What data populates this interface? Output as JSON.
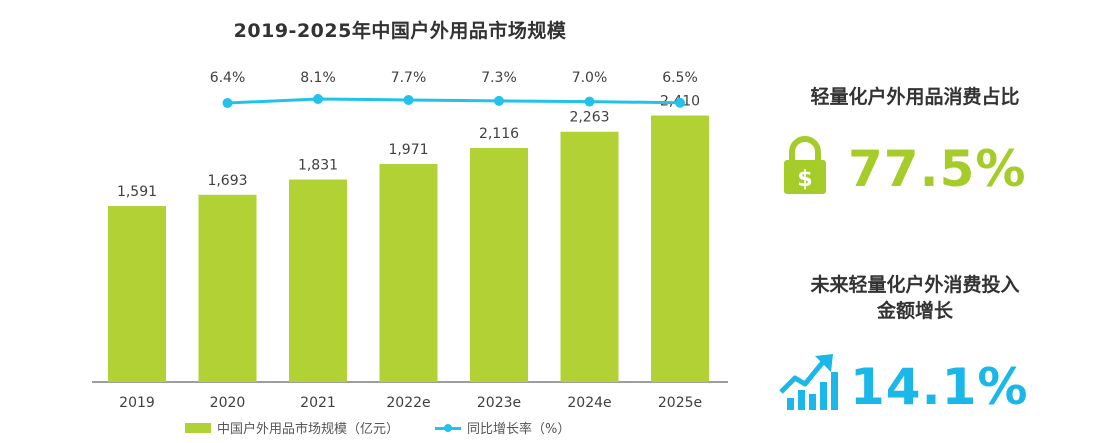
{
  "chart_data": {
    "type": "bar",
    "title": "2019-2025年中国户外用品市场规模",
    "categories": [
      "2019",
      "2020",
      "2021",
      "2022e",
      "2023e",
      "2024e",
      "2025e"
    ],
    "series": [
      {
        "name": "中国户外用品市场规模（亿元）",
        "type": "bar",
        "values": [
          1591,
          1693,
          1831,
          1971,
          2116,
          2263,
          2410
        ],
        "labels": [
          "1,591",
          "1,693",
          "1,831",
          "1,971",
          "2,116",
          "2,263",
          "2,410"
        ]
      },
      {
        "name": "同比增长率（%）",
        "type": "line",
        "values": [
          null,
          6.4,
          8.1,
          7.7,
          7.3,
          7.0,
          6.5
        ],
        "labels": [
          "",
          "6.4%",
          "8.1%",
          "7.7%",
          "7.3%",
          "7.0%",
          "6.5%"
        ]
      }
    ],
    "ylim": [
      0,
      2550
    ],
    "rate_ylim": [
      0,
      8.1
    ],
    "grid": false,
    "legend": "bottom",
    "colors": {
      "bar": "#b1d135",
      "line": "#23c2ea"
    }
  },
  "stats": {
    "share_title": "轻量化户外用品消费占比",
    "share_value": "77.5%",
    "share_icon": "lock-dollar-icon",
    "growth_title_line1": "未来轻量化户外消费投入",
    "growth_title_line2": "金额增长",
    "growth_value": "14.1%",
    "growth_icon": "growth-chart-icon",
    "colors": {
      "green": "#a6cc2a",
      "blue": "#1ab7e8"
    }
  }
}
